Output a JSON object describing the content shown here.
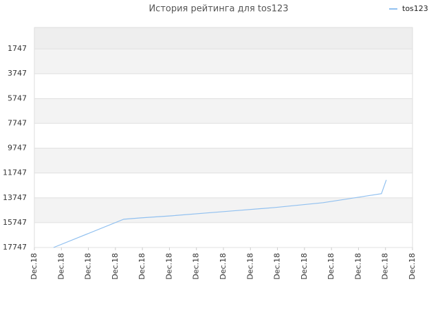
{
  "chart_data": {
    "type": "line",
    "title": "История рейтинга для tos123",
    "x": [
      0.71,
      3.31,
      3.95,
      5.09,
      6.36,
      7.64,
      8.91,
      10.69,
      12.85,
      13.03
    ],
    "series": [
      {
        "name": "tos123",
        "color": "#90c0f0",
        "values": [
          17747,
          15469,
          15358,
          15191,
          14969,
          14747,
          14525,
          14136,
          13414,
          12303
        ]
      }
    ],
    "xlim": [
      0,
      14
    ],
    "xticks": [
      {
        "value": 0,
        "label": "Dec.18"
      },
      {
        "value": 1,
        "label": "Dec.18"
      },
      {
        "value": 2,
        "label": "Dec.18"
      },
      {
        "value": 3,
        "label": "Dec.18"
      },
      {
        "value": 4,
        "label": "Dec.18"
      },
      {
        "value": 5,
        "label": "Dec.18"
      },
      {
        "value": 6,
        "label": "Dec.18"
      },
      {
        "value": 7,
        "label": "Dec.18"
      },
      {
        "value": 8,
        "label": "Dec.18"
      },
      {
        "value": 9,
        "label": "Dec.18"
      },
      {
        "value": 10,
        "label": "Dec.18"
      },
      {
        "value": 11,
        "label": "Dec.18"
      },
      {
        "value": 12,
        "label": "Dec.18"
      },
      {
        "value": 13,
        "label": "Dec.18"
      },
      {
        "value": 14,
        "label": "Dec.18"
      }
    ],
    "ylim": [
      17747,
      25
    ],
    "yticks": [
      1747,
      3747,
      5747,
      7747,
      9747,
      11747,
      13747,
      15747,
      17747
    ],
    "grid": true,
    "legend": "top-right"
  }
}
